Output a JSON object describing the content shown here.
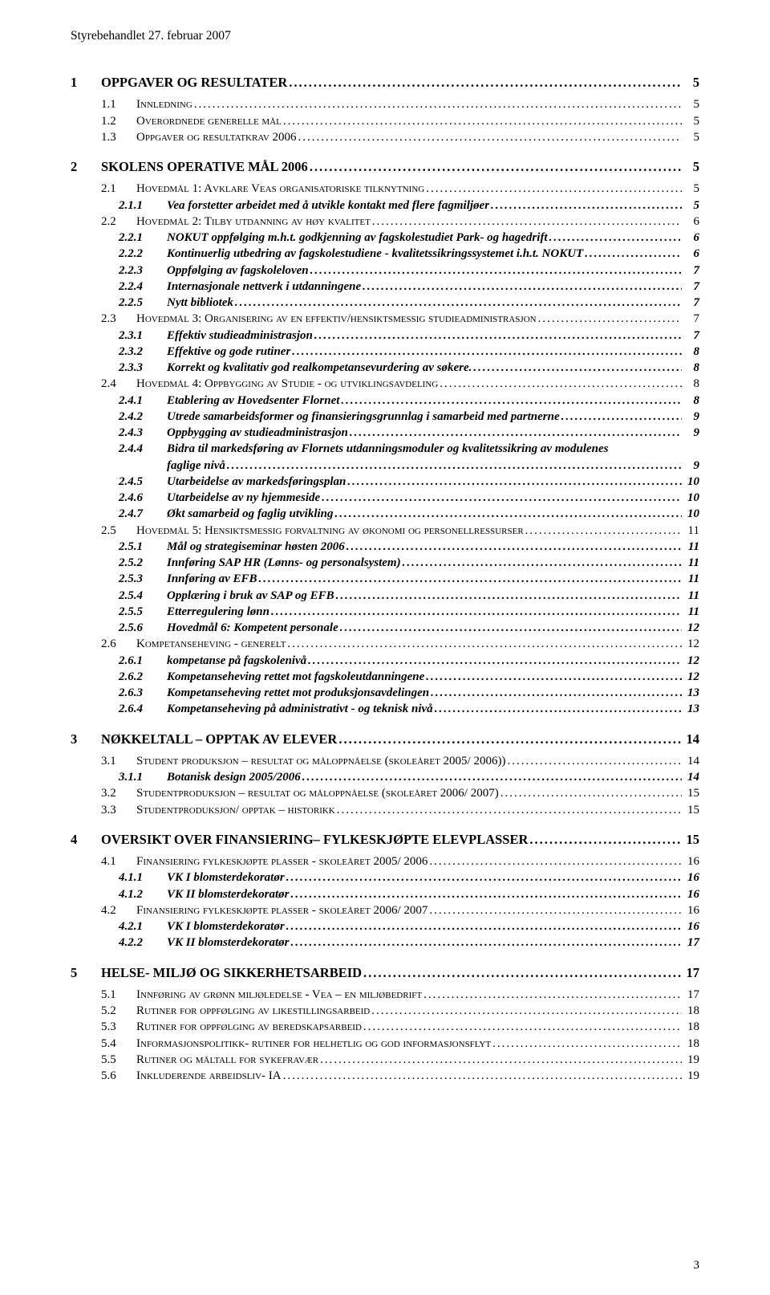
{
  "header": "Styrebehandlet 27. februar 2007",
  "page_number": "3",
  "toc": [
    {
      "lvl": 1,
      "num": "1",
      "label": "OPPGAVER OG RESULTATER",
      "page": "5"
    },
    {
      "lvl": 2,
      "num": "1.1",
      "label": "Innledning",
      "page": "5"
    },
    {
      "lvl": 2,
      "num": "1.2",
      "label": "Overordnede generelle mål",
      "page": "5"
    },
    {
      "lvl": 2,
      "num": "1.3",
      "label": "Oppgaver og resultatkrav 2006",
      "page": "5"
    },
    {
      "lvl": 1,
      "num": "2",
      "label": "SKOLENS OPERATIVE MÅL 2006",
      "page": "5"
    },
    {
      "lvl": 2,
      "num": "2.1",
      "label": "Hovedmål 1: Avklare Veas organisatoriske tilknytning",
      "page": "5"
    },
    {
      "lvl": 3,
      "num": "2.1.1",
      "label": "Vea forstetter arbeidet med å utvikle kontakt med flere fagmiljøer",
      "page": "5"
    },
    {
      "lvl": 2,
      "num": "2.2",
      "label": "Hovedmål 2: Tilby utdanning av høy kvalitet",
      "page": "6"
    },
    {
      "lvl": 3,
      "num": "2.2.1",
      "label": "NOKUT oppfølging m.h.t. godkjenning av fagskolestudiet Park- og hagedrift",
      "page": "6"
    },
    {
      "lvl": 3,
      "num": "2.2.2",
      "label": "Kontinuerlig utbedring av fagskolestudiene - kvalitetssikringssystemet i.h.t. NOKUT",
      "page": "6"
    },
    {
      "lvl": 3,
      "num": "2.2.3",
      "label": "Oppfølging av fagskoleloven",
      "page": "7"
    },
    {
      "lvl": 3,
      "num": "2.2.4",
      "label": "Internasjonale nettverk i utdanningene",
      "page": "7"
    },
    {
      "lvl": 3,
      "num": "2.2.5",
      "label": "Nytt bibliotek",
      "page": "7"
    },
    {
      "lvl": 2,
      "num": "2.3",
      "label": "Hovedmål 3: Organisering av en effektiv/hensiktsmessig studieadministrasjon",
      "page": "7"
    },
    {
      "lvl": 3,
      "num": "2.3.1",
      "label": "Effektiv studieadministrasjon",
      "page": "7"
    },
    {
      "lvl": 3,
      "num": "2.3.2",
      "label": "Effektive og gode rutiner",
      "page": "8"
    },
    {
      "lvl": 3,
      "num": "2.3.3",
      "label": "Korrekt og kvalitativ god realkompetansevurdering av søkere.",
      "page": "8"
    },
    {
      "lvl": 2,
      "num": "2.4",
      "label": "Hovedmål 4: Oppbygging av Studie - og utviklingsavdeling",
      "page": "8"
    },
    {
      "lvl": 3,
      "num": "2.4.1",
      "label": "Etablering av Hovedsenter Flornet",
      "page": "8"
    },
    {
      "lvl": 3,
      "num": "2.4.2",
      "label": "Utrede samarbeidsformer og finansieringsgrunnlag i samarbeid med partnerne",
      "page": "9"
    },
    {
      "lvl": 3,
      "num": "2.4.3",
      "label": "Oppbygging av studieadministrasjon",
      "page": "9"
    },
    {
      "lvl": 3,
      "num": "2.4.4",
      "label": "Bidra til markedsføring av Flornets utdanningsmoduler og kvalitetssikring av modulenes",
      "page": ""
    },
    {
      "lvl": 3,
      "num": "",
      "label": "faglige nivå",
      "page": "9",
      "cont": true
    },
    {
      "lvl": 3,
      "num": "2.4.5",
      "label": "Utarbeidelse av markedsføringsplan",
      "page": "10"
    },
    {
      "lvl": 3,
      "num": "2.4.6",
      "label": "Utarbeidelse av ny hjemmeside",
      "page": "10"
    },
    {
      "lvl": 3,
      "num": "2.4.7",
      "label": "Økt samarbeid og faglig utvikling",
      "page": "10"
    },
    {
      "lvl": 2,
      "num": "2.5",
      "label": "Hovedmål 5: Hensiktsmessig forvaltning av økonomi og personellressurser",
      "page": "11"
    },
    {
      "lvl": 3,
      "num": "2.5.1",
      "label": "Mål og strategiseminar høsten 2006",
      "page": "11"
    },
    {
      "lvl": 3,
      "num": "2.5.2",
      "label": "Innføring SAP HR (Lønns- og personalsystem)",
      "page": "11"
    },
    {
      "lvl": 3,
      "num": "2.5.3",
      "label": "Innføring av EFB",
      "page": "11"
    },
    {
      "lvl": 3,
      "num": "2.5.4",
      "label": "Opplæring i bruk av SAP og EFB",
      "page": "11"
    },
    {
      "lvl": 3,
      "num": "2.5.5",
      "label": "Etterregulering lønn",
      "page": "11"
    },
    {
      "lvl": 3,
      "num": "2.5.6",
      "label": "Hovedmål 6: Kompetent personale",
      "page": "12"
    },
    {
      "lvl": 2,
      "num": "2.6",
      "label": "Kompetanseheving - generelt",
      "page": "12"
    },
    {
      "lvl": 3,
      "num": "2.6.1",
      "label": "kompetanse på fagskolenivå",
      "page": "12"
    },
    {
      "lvl": 3,
      "num": "2.6.2",
      "label": "Kompetanseheving rettet mot fagskoleutdanningene",
      "page": "12"
    },
    {
      "lvl": 3,
      "num": "2.6.3",
      "label": "Kompetanseheving rettet mot produksjonsavdelingen",
      "page": "13"
    },
    {
      "lvl": 3,
      "num": "2.6.4",
      "label": "Kompetanseheving på administrativt - og teknisk nivå",
      "page": "13"
    },
    {
      "lvl": 1,
      "num": "3",
      "label": "NØKKELTALL – OPPTAK AV ELEVER",
      "page": "14"
    },
    {
      "lvl": 2,
      "num": "3.1",
      "label": "Student produksjon – resultat og måloppnåelse (skoleåret 2005/ 2006))",
      "page": "14"
    },
    {
      "lvl": 3,
      "num": "3.1.1",
      "label": "Botanisk design 2005/2006",
      "page": "14"
    },
    {
      "lvl": 2,
      "num": "3.2",
      "label": "Studentproduksjon – resultat og måloppnåelse (skoleåret 2006/ 2007)",
      "page": "15"
    },
    {
      "lvl": 2,
      "num": "3.3",
      "label": "Studentproduksjon/ opptak – historikk",
      "page": "15"
    },
    {
      "lvl": 1,
      "num": "4",
      "label": "OVERSIKT OVER FINANSIERING– FYLKESKJØPTE ELEVPLASSER",
      "page": "15"
    },
    {
      "lvl": 2,
      "num": "4.1",
      "label": "Finansiering fylkeskjøpte plasser - skoleåret 2005/ 2006",
      "page": "16"
    },
    {
      "lvl": 3,
      "num": "4.1.1",
      "label": "VK I blomsterdekoratør",
      "page": "16"
    },
    {
      "lvl": 3,
      "num": "4.1.2",
      "label": "VK II blomsterdekoratør",
      "page": "16"
    },
    {
      "lvl": 2,
      "num": "4.2",
      "label": "Finansiering fylkeskjøpte plasser - skoleåret 2006/ 2007",
      "page": "16"
    },
    {
      "lvl": 3,
      "num": "4.2.1",
      "label": "VK I blomsterdekoratør",
      "page": "16"
    },
    {
      "lvl": 3,
      "num": "4.2.2",
      "label": "VK II blomsterdekoratør",
      "page": "17"
    },
    {
      "lvl": 1,
      "num": "5",
      "label": "HELSE- MILJØ OG SIKKERHETSARBEID",
      "page": "17"
    },
    {
      "lvl": 2,
      "num": "5.1",
      "label": "Innføring av grønn miljøledelse - Vea – en miljøbedrift",
      "page": "17"
    },
    {
      "lvl": 2,
      "num": "5.2",
      "label": "Rutiner for oppfølging av likestillingsarbeid",
      "page": "18"
    },
    {
      "lvl": 2,
      "num": "5.3",
      "label": "Rutiner for oppfølging av beredskapsarbeid",
      "page": "18"
    },
    {
      "lvl": 2,
      "num": "5.4",
      "label": "Informasjonspolitikk- rutiner for helhetlig og god informasjonsflyt",
      "page": "18"
    },
    {
      "lvl": 2,
      "num": "5.5",
      "label": "Rutiner og måltall for sykefravær",
      "page": "19"
    },
    {
      "lvl": 2,
      "num": "5.6",
      "label": "Inkluderende arbeidsliv- IA",
      "page": "19"
    }
  ]
}
